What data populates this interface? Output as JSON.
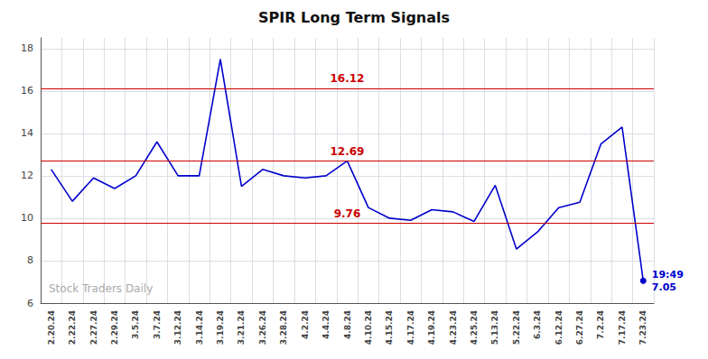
{
  "chart_data": {
    "type": "line",
    "title": "SPIR Long Term Signals",
    "categories": [
      "2.20.24",
      "2.22.24",
      "2.27.24",
      "2.29.24",
      "3.5.24",
      "3.7.24",
      "3.12.24",
      "3.14.24",
      "3.19.24",
      "3.21.24",
      "3.26.24",
      "3.28.24",
      "4.2.24",
      "4.4.24",
      "4.8.24",
      "4.10.24",
      "4.15.24",
      "4.17.24",
      "4.19.24",
      "4.23.24",
      "4.25.24",
      "5.13.24",
      "5.22.24",
      "6.3.24",
      "6.12.24",
      "6.27.24",
      "7.2.24",
      "7.17.24",
      "7.23.24"
    ],
    "values": [
      12.3,
      10.8,
      11.9,
      11.4,
      12.0,
      13.6,
      12.0,
      12.0,
      17.5,
      11.5,
      12.3,
      12.0,
      11.9,
      12.0,
      12.7,
      10.5,
      10.0,
      9.9,
      10.4,
      10.3,
      9.85,
      11.55,
      8.55,
      9.35,
      10.5,
      10.75,
      13.5,
      14.3,
      7.05
    ],
    "color": "#0000cc",
    "ylim": [
      6,
      18.5
    ],
    "yticks": [
      6,
      8,
      10,
      12,
      14,
      16,
      18
    ],
    "grid": true,
    "hlines": [
      {
        "y": 16.12,
        "label": "16.12",
        "color": "#cc0000"
      },
      {
        "y": 12.69,
        "label": "12.69",
        "color": "#cc0000"
      },
      {
        "y": 9.76,
        "label": "9.76",
        "color": "#cc0000"
      }
    ],
    "annotations": [
      {
        "x": "7.23.24",
        "y": 7.05,
        "text": "19:49"
      },
      {
        "x": "7.23.24",
        "y": 7.05,
        "text": "7.05"
      }
    ],
    "watermark": "Stock Traders Daily"
  }
}
